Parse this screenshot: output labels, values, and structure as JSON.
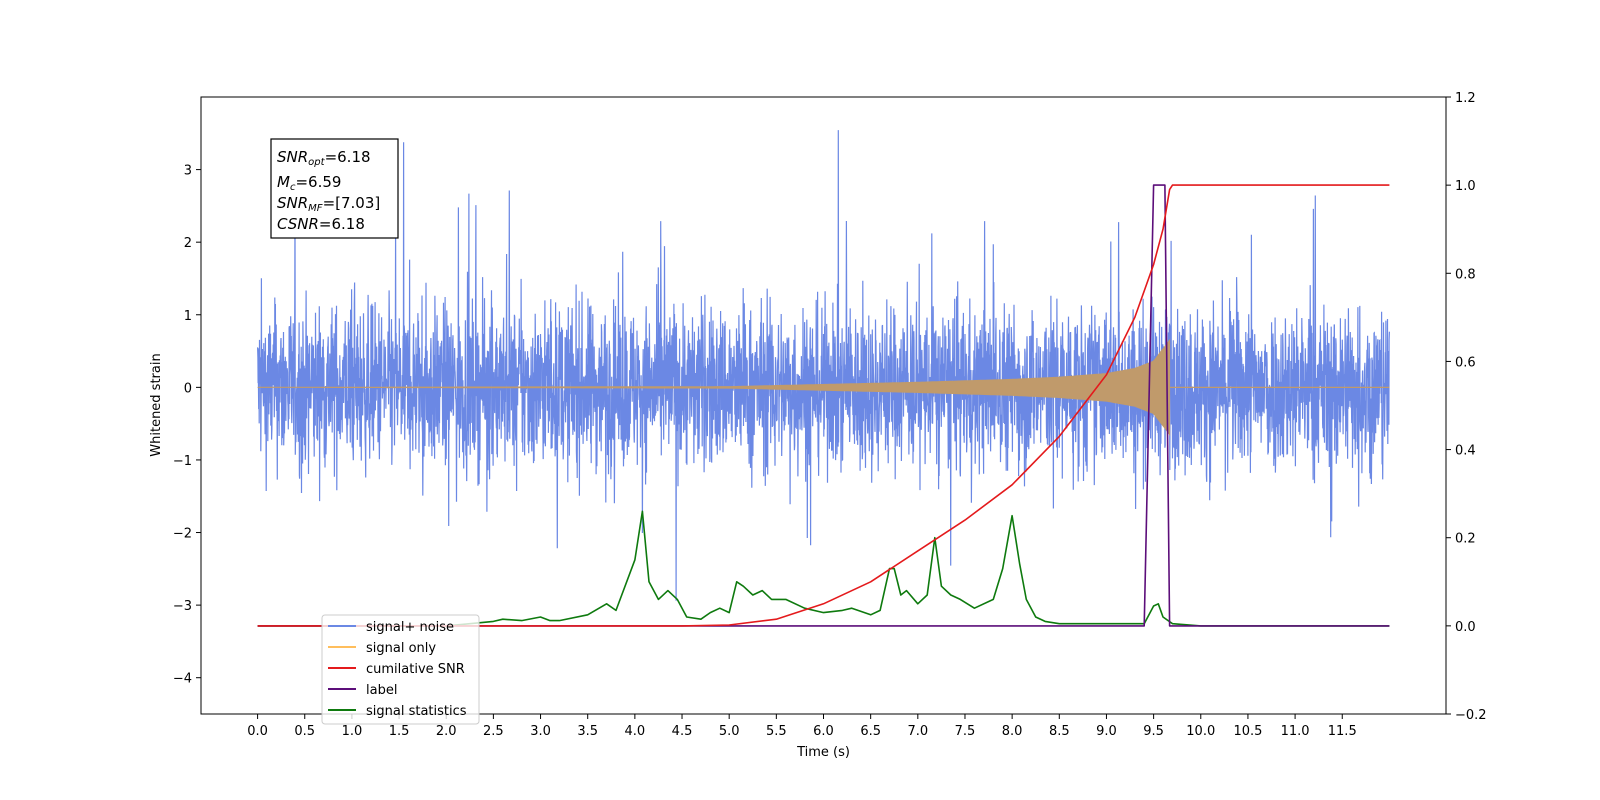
{
  "chart_data": {
    "type": "line",
    "title": "",
    "xlabel": "Time (s)",
    "ylabel": "Whitened strain",
    "y2label": "",
    "xlim": [
      -0.6,
      12.6
    ],
    "ylim": [
      -4.5,
      4.0
    ],
    "y2lim": [
      -0.2,
      1.2
    ],
    "grid": false,
    "x_ticks": [
      "0.0",
      "0.5",
      "1.0",
      "1.5",
      "2.0",
      "2.5",
      "3.0",
      "3.5",
      "4.0",
      "4.5",
      "5.0",
      "5.5",
      "6.0",
      "6.5",
      "7.0",
      "7.5",
      "8.0",
      "8.5",
      "9.0",
      "9.5",
      "10.0",
      "10.5",
      "11.0",
      "11.5"
    ],
    "y_ticks": [
      "3",
      "2",
      "1",
      "0",
      "−1",
      "−2",
      "−3",
      "−4"
    ],
    "y2_ticks": [
      "1.2",
      "1.0",
      "0.8",
      "0.6",
      "0.4",
      "0.2",
      "0.0",
      "−0.2"
    ],
    "annotation": {
      "lines": [
        {
          "sym": "SNR",
          "sub": "opt",
          "value": "=6.18"
        },
        {
          "sym": "M",
          "sub": "c",
          "value": "=6.59"
        },
        {
          "sym": "SNR",
          "sub": "MF",
          "value": "=[7.03]"
        },
        {
          "sym": "CSNR",
          "sub": "",
          "value": "=6.18"
        }
      ]
    },
    "legend": {
      "placement": "lower-left",
      "entries": [
        {
          "label": "signal+ noise",
          "color": "#6b88e4"
        },
        {
          "label": "signal only",
          "color": "#ffbe5c"
        },
        {
          "label": "cumilative SNR",
          "color": "#e41a1c"
        },
        {
          "label": "label",
          "color": "#5c0e7a"
        },
        {
          "label": "signal statistics",
          "color": "#0e7a0e"
        }
      ]
    },
    "series": [
      {
        "name": "signal+ noise",
        "axis": "left",
        "color": "#6b88e4",
        "kind": "noise",
        "x_range": [
          0.0,
          12.0
        ],
        "typical_envelope": [
          -1.6,
          1.8
        ],
        "peak_range": [
          -4.1,
          3.6
        ]
      },
      {
        "name": "signal only",
        "axis": "left",
        "color": "#c09a6b",
        "kind": "chirp",
        "x_range": [
          0.0,
          9.67
        ],
        "amplitude": {
          "x": [
            0.0,
            5.0,
            6.0,
            7.0,
            8.0,
            8.5,
            9.0,
            9.3,
            9.5,
            9.67
          ],
          "y": [
            0.0,
            0.01,
            0.04,
            0.07,
            0.11,
            0.14,
            0.19,
            0.26,
            0.36,
            0.65
          ]
        }
      },
      {
        "name": "cumilative SNR",
        "axis": "right",
        "color": "#e41a1c",
        "x": [
          0.0,
          4.5,
          5.0,
          5.5,
          6.0,
          6.5,
          7.0,
          7.5,
          8.0,
          8.5,
          9.0,
          9.3,
          9.5,
          9.6,
          9.67,
          9.7,
          11.0,
          12.0
        ],
        "y": [
          0.0,
          0.0,
          0.002,
          0.015,
          0.05,
          0.1,
          0.17,
          0.24,
          0.32,
          0.43,
          0.57,
          0.7,
          0.82,
          0.9,
          0.99,
          1.0,
          1.0,
          1.0
        ]
      },
      {
        "name": "label",
        "axis": "right",
        "color": "#5c0e7a",
        "x": [
          0.0,
          9.4,
          9.5,
          9.62,
          9.67,
          12.0
        ],
        "y": [
          0.0,
          0.0,
          1.0,
          1.0,
          0.0,
          0.0
        ]
      },
      {
        "name": "signal statistics",
        "axis": "right",
        "color": "#0e7a0e",
        "x": [
          0.0,
          2.0,
          2.5,
          2.6,
          2.8,
          3.0,
          3.1,
          3.2,
          3.5,
          3.7,
          3.8,
          4.0,
          4.08,
          4.15,
          4.25,
          4.35,
          4.45,
          4.55,
          4.7,
          4.8,
          4.9,
          5.0,
          5.08,
          5.15,
          5.25,
          5.35,
          5.45,
          5.5,
          5.6,
          5.8,
          6.0,
          6.2,
          6.3,
          6.5,
          6.6,
          6.7,
          6.75,
          6.82,
          6.88,
          7.0,
          7.1,
          7.18,
          7.25,
          7.35,
          7.45,
          7.6,
          7.8,
          7.9,
          8.0,
          8.08,
          8.15,
          8.25,
          8.35,
          8.5,
          9.0,
          9.4,
          9.5,
          9.55,
          9.6,
          9.7,
          10.0,
          12.0
        ],
        "y": [
          0.0,
          0.0,
          0.01,
          0.015,
          0.012,
          0.02,
          0.012,
          0.012,
          0.025,
          0.05,
          0.035,
          0.15,
          0.26,
          0.1,
          0.06,
          0.08,
          0.06,
          0.02,
          0.015,
          0.03,
          0.04,
          0.03,
          0.1,
          0.09,
          0.07,
          0.08,
          0.06,
          0.06,
          0.06,
          0.04,
          0.03,
          0.035,
          0.04,
          0.025,
          0.035,
          0.13,
          0.13,
          0.07,
          0.08,
          0.05,
          0.07,
          0.2,
          0.09,
          0.07,
          0.06,
          0.04,
          0.06,
          0.13,
          0.25,
          0.14,
          0.06,
          0.02,
          0.01,
          0.005,
          0.005,
          0.005,
          0.045,
          0.05,
          0.02,
          0.005,
          0.0,
          0.0
        ]
      }
    ]
  }
}
